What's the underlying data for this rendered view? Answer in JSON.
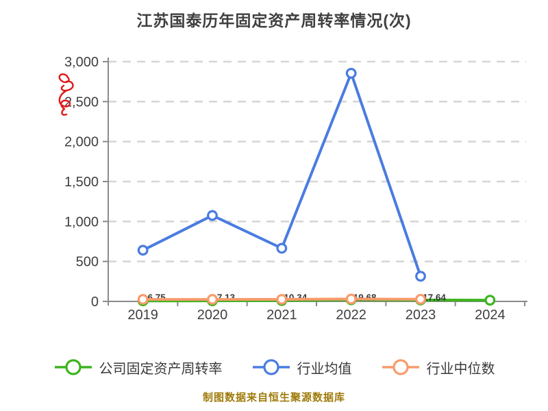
{
  "title": "江苏国泰历年固定资产周转率情况(次)",
  "source_note": "制图数据来自恒生聚源数据库",
  "colors": {
    "company": "#3db41e",
    "industry_mean": "#4a7ce0",
    "industry_median": "#f89b6c",
    "marker_fill": "#ffffff",
    "grid": "#d6d6d6",
    "axis": "#8a8a8a",
    "tick_text": "#3f3f3f",
    "title_text": "#3f3f3f",
    "point_label_text": "#3a3a3a",
    "footer_text": "#9f7a0a",
    "scribble": "#e01818",
    "background": "#ffffff"
  },
  "legend": {
    "items": [
      {
        "label": "公司固定资产周转率",
        "series": "company"
      },
      {
        "label": "行业均值",
        "series": "industry_mean"
      },
      {
        "label": "行业中位数",
        "series": "industry_median"
      }
    ]
  },
  "chart_data": {
    "type": "line",
    "title": "江苏国泰历年固定资产周转率情况(次)",
    "categories": [
      "2019",
      "2020",
      "2021",
      "2022",
      "2023",
      "2024"
    ],
    "series": [
      {
        "name": "公司固定资产周转率",
        "color_key": "company",
        "values": [
          6.75,
          7.13,
          10.34,
          19.68,
          17.64,
          15
        ],
        "point_labels": [
          "6.75",
          "7.13",
          "10.34",
          "19.68",
          "17.64",
          ""
        ]
      },
      {
        "name": "行业均值",
        "color_key": "industry_mean",
        "values": [
          640,
          1075,
          665,
          2855,
          315,
          null
        ],
        "point_labels": [
          "",
          "",
          "",
          "",
          "",
          ""
        ]
      },
      {
        "name": "行业中位数",
        "color_key": "industry_median",
        "values": [
          25,
          25,
          26,
          30,
          27,
          null
        ],
        "point_labels": [
          "",
          "",
          "",
          "",
          "",
          ""
        ]
      }
    ],
    "ylim": [
      0,
      3000
    ],
    "ytick_step": 500,
    "ytick_labels": [
      "0",
      "500",
      "1,000",
      "1,500",
      "2,000",
      "2,500",
      "3,000"
    ],
    "grid": "horizontal-dashed",
    "legend_position": "bottom"
  }
}
